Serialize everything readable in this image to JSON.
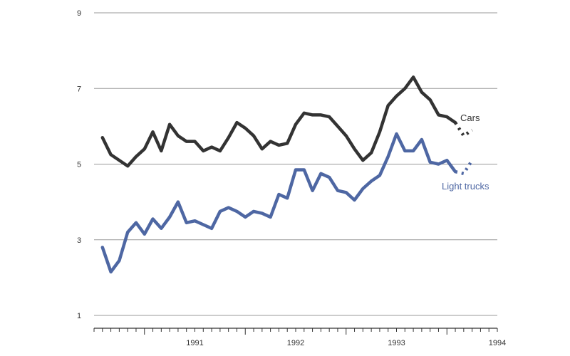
{
  "chart_data": {
    "type": "line",
    "title": "",
    "xlabel": "",
    "ylabel": "",
    "ylim": [
      1,
      9
    ],
    "y_ticks": [
      "1",
      "3",
      "5",
      "7",
      "9"
    ],
    "x_ticks": [
      "1991",
      "1992",
      "1993",
      "1994"
    ],
    "x_range": [
      "1990-07",
      "1994-07"
    ],
    "grid": "horizontal",
    "colors": {
      "grid": "#999999",
      "axis": "#333333",
      "cars": "#333333",
      "light_trucks": "#4e67a3"
    },
    "series": [
      {
        "name": "Cars",
        "x": [
          "1990-08",
          "1990-09",
          "1990-10",
          "1990-11",
          "1990-12",
          "1991-01",
          "1991-02",
          "1991-03",
          "1991-04",
          "1991-05",
          "1991-06",
          "1991-07",
          "1991-08",
          "1991-09",
          "1991-10",
          "1991-11",
          "1991-12",
          "1992-01",
          "1992-02",
          "1992-03",
          "1992-04",
          "1992-05",
          "1992-06",
          "1992-07",
          "1992-08",
          "1992-09",
          "1992-10",
          "1992-11",
          "1992-12",
          "1993-01",
          "1993-02",
          "1993-03",
          "1993-04",
          "1993-05",
          "1993-06",
          "1993-07",
          "1993-08",
          "1993-09",
          "1993-10",
          "1993-11",
          "1993-12",
          "1994-01",
          "1994-02"
        ],
        "values": [
          5.7,
          5.25,
          5.1,
          4.95,
          5.2,
          5.4,
          5.85,
          5.35,
          6.05,
          5.75,
          5.6,
          5.6,
          5.35,
          5.45,
          5.35,
          5.7,
          6.1,
          5.95,
          5.75,
          5.4,
          5.6,
          5.5,
          5.55,
          6.05,
          6.35,
          6.3,
          6.3,
          6.25,
          6.0,
          5.75,
          5.4,
          5.1,
          5.3,
          5.85,
          6.55,
          6.8,
          7.0,
          7.3,
          6.9,
          6.7,
          6.3,
          6.25,
          6.1
        ],
        "projection_x": [
          "1994-02",
          "1994-03",
          "1994-04"
        ],
        "projection_values": [
          6.1,
          5.75,
          5.9
        ]
      },
      {
        "name": "Light trucks",
        "x": [
          "1990-08",
          "1990-09",
          "1990-10",
          "1990-11",
          "1990-12",
          "1991-01",
          "1991-02",
          "1991-03",
          "1991-04",
          "1991-05",
          "1991-06",
          "1991-07",
          "1991-08",
          "1991-09",
          "1991-10",
          "1991-11",
          "1991-12",
          "1992-01",
          "1992-02",
          "1992-03",
          "1992-04",
          "1992-05",
          "1992-06",
          "1992-07",
          "1992-08",
          "1992-09",
          "1992-10",
          "1992-11",
          "1992-12",
          "1993-01",
          "1993-02",
          "1993-03",
          "1993-04",
          "1993-05",
          "1993-06",
          "1993-07",
          "1993-08",
          "1993-09",
          "1993-10",
          "1993-11",
          "1993-12",
          "1994-01",
          "1994-02"
        ],
        "values": [
          2.8,
          2.15,
          2.45,
          3.2,
          3.45,
          3.15,
          3.55,
          3.3,
          3.6,
          4.0,
          3.45,
          3.5,
          3.4,
          3.3,
          3.75,
          3.85,
          3.75,
          3.6,
          3.75,
          3.7,
          3.6,
          4.2,
          4.1,
          4.85,
          4.85,
          4.3,
          4.75,
          4.65,
          4.3,
          4.25,
          4.05,
          4.35,
          4.55,
          4.7,
          5.2,
          5.8,
          5.35,
          5.35,
          5.65,
          5.05,
          5.0,
          5.1,
          4.8
        ],
        "projection_x": [
          "1994-02",
          "1994-03",
          "1994-04"
        ],
        "projection_values": [
          4.8,
          4.75,
          5.1
        ]
      }
    ]
  }
}
